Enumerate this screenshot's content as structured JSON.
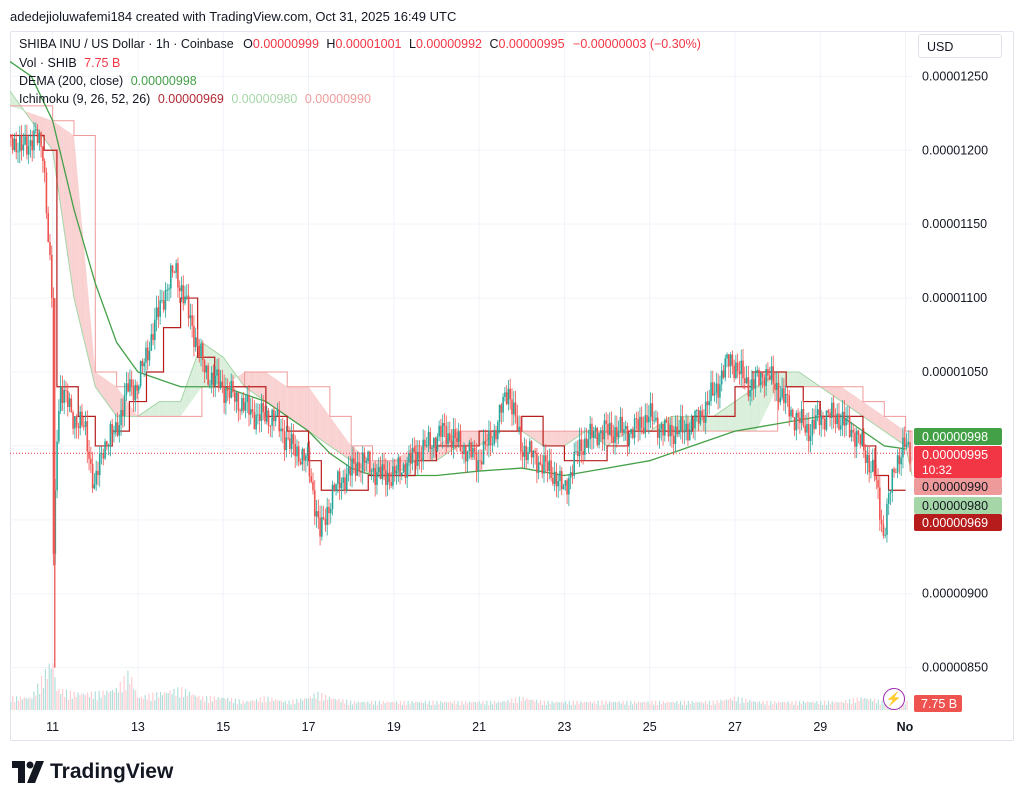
{
  "header": {
    "text": "adedejioluwafemi184 created with TradingView.com, Oct 31, 2025 16:49 UTC"
  },
  "legend": {
    "symbol": "SHIBA INU / US Dollar · 1h · Coinbase",
    "o_label": "O",
    "o_value": "0.00000999",
    "h_label": "H",
    "h_value": "0.00001001",
    "l_label": "L",
    "l_value": "0.00000992",
    "c_label": "C",
    "c_value": "0.00000995",
    "change": "−0.00000003 (−0.30%)",
    "vol_label": "Vol · SHIB",
    "vol_value": "7.75 B",
    "dema_label": "DEMA (200, close)",
    "dema_value": "0.00000998",
    "ichimoku_label": "Ichimoku (9, 26, 52, 26)",
    "ichimoku_v1": "0.00000969",
    "ichimoku_v2": "0.00000980",
    "ichimoku_v3": "0.00000990"
  },
  "currency": "USD",
  "price_tags": [
    {
      "value": "0.00000998",
      "color": "#43a047",
      "text_color": "#ffffff"
    },
    {
      "value": "0.00000995",
      "color": "#f23645",
      "text_color": "#ffffff",
      "sub": "10:32"
    },
    {
      "value": "0.00000990",
      "color": "#ef9a9a",
      "text_color": "#131722"
    },
    {
      "value": "0.00000980",
      "color": "#a5d6a7",
      "text_color": "#131722"
    },
    {
      "value": "0.00000969",
      "color": "#b71c1c",
      "text_color": "#ffffff"
    }
  ],
  "volume_tag": "7.75 B",
  "brand": "TradingView",
  "icons": {
    "alert": "lightning-bolt-icon",
    "logo": "tradingview-logo-icon"
  },
  "colors": {
    "up": "#26a69a",
    "down": "#ef5350",
    "dema": "#43a047",
    "conversion": "#b71c1c",
    "kumo_bear": "#f8c9c9",
    "kumo_bull": "#d4ecd5",
    "grid": "#f0f3fa"
  },
  "chart_data": {
    "type": "line",
    "title": "SHIBA INU / US Dollar · 1h · Coinbase",
    "y_ticks": [
      "0.00001250",
      "0.00001200",
      "0.00001150",
      "0.00001100",
      "0.00001050",
      "0.00000900",
      "0.00000850"
    ],
    "y_tick_values": [
      1.25e-05,
      1.2e-05,
      1.15e-05,
      1.1e-05,
      1.05e-05,
      9e-06,
      8.5e-06
    ],
    "x_ticks": [
      "11",
      "13",
      "15",
      "17",
      "19",
      "21",
      "23",
      "25",
      "27",
      "29",
      "No"
    ],
    "x_tick_days": [
      11,
      13,
      15,
      17,
      19,
      21,
      23,
      25,
      27,
      29,
      31
    ],
    "ylim": [
      8.2e-06,
      1.28e-05
    ],
    "xlim_days": [
      10.0,
      31.15
    ],
    "last_close": 9.95e-06,
    "series": [
      {
        "name": "Price",
        "x": [
          10.0,
          10.3,
          10.6,
          10.8,
          10.9,
          11.0,
          11.05,
          11.1,
          11.2,
          11.5,
          11.8,
          12.0,
          12.2,
          12.5,
          12.8,
          13.0,
          13.3,
          13.6,
          13.9,
          14.0,
          14.3,
          14.6,
          15.0,
          15.4,
          15.8,
          16.2,
          16.6,
          17.0,
          17.3,
          17.4,
          17.6,
          17.9,
          18.3,
          18.7,
          19.0,
          19.4,
          19.8,
          20.2,
          20.6,
          21.0,
          21.4,
          21.7,
          22.0,
          22.4,
          22.8,
          23.0,
          23.4,
          23.8,
          24.2,
          24.6,
          25.0,
          25.4,
          25.8,
          26.2,
          26.6,
          26.9,
          27.1,
          27.4,
          27.7,
          28.0,
          28.4,
          28.8,
          29.0,
          29.4,
          29.8,
          30.0,
          30.3,
          30.5,
          30.6,
          30.8,
          31.0,
          31.1
        ],
        "y": [
          1.21e-05,
          1.2e-05,
          1.21e-05,
          1.2e-05,
          1.15e-05,
          1.1e-05,
          8.9e-06,
          1e-05,
          1.04e-05,
          1.02e-05,
          1.01e-05,
          9.7e-06,
          1e-05,
          1.01e-05,
          1.04e-05,
          1.04e-05,
          1.07e-05,
          1.1e-05,
          1.12e-05,
          1.11e-05,
          1.08e-05,
          1.05e-05,
          1.04e-05,
          1.03e-05,
          1.02e-05,
          1.02e-05,
          1e-05,
          9.9e-06,
          9.4e-06,
          9.5e-06,
          9.7e-06,
          9.8e-06,
          9.9e-06,
          9.8e-06,
          9.8e-06,
          9.9e-06,
          1e-05,
          1.01e-05,
          1e-05,
          9.9e-06,
          1.01e-05,
          1.04e-05,
          1e-05,
          9.9e-06,
          9.8e-06,
          9.7e-06,
          1e-05,
          1.01e-05,
          1.01e-05,
          1.01e-05,
          1.02e-05,
          1.01e-05,
          1.01e-05,
          1.02e-05,
          1.04e-05,
          1.06e-05,
          1.05e-05,
          1.04e-05,
          1.05e-05,
          1.04e-05,
          1.02e-05,
          1.01e-05,
          1.02e-05,
          1.02e-05,
          1.01e-05,
          1e-05,
          9.8e-06,
          9.4e-06,
          9.6e-06,
          9.9e-06,
          1e-05,
          9.95e-06
        ]
      },
      {
        "name": "DEMA (200, close)",
        "x": [
          10.0,
          10.5,
          11.0,
          11.5,
          12.0,
          12.5,
          13.0,
          14.0,
          15.0,
          16.0,
          17.0,
          17.5,
          18.0,
          18.5,
          19.0,
          20.0,
          21.0,
          22.0,
          23.0,
          24.0,
          25.0,
          26.0,
          27.0,
          28.0,
          29.0,
          29.5,
          30.0,
          30.5,
          31.0
        ],
        "y": [
          1.26e-05,
          1.25e-05,
          1.22e-05,
          1.16e-05,
          1.11e-05,
          1.07e-05,
          1.05e-05,
          1.04e-05,
          1.04e-05,
          1.03e-05,
          1.01e-05,
          9.95e-06,
          9.85e-06,
          9.8e-06,
          9.8e-06,
          9.8e-06,
          9.83e-06,
          9.85e-06,
          9.8e-06,
          9.85e-06,
          9.9e-06,
          1e-05,
          1.01e-05,
          1.015e-05,
          1.02e-05,
          1.02e-05,
          1.01e-05,
          1e-05,
          9.98e-06
        ]
      },
      {
        "name": "Conversion line",
        "x": [
          10.0,
          10.8,
          11.1,
          11.6,
          12.0,
          12.4,
          12.8,
          13.2,
          13.6,
          14.0,
          14.4,
          14.8,
          15.4,
          16.0,
          16.5,
          17.0,
          17.3,
          17.8,
          18.4,
          19.0,
          19.5,
          20.0,
          20.5,
          21.0,
          21.5,
          22.0,
          22.5,
          23.0,
          23.5,
          24.0,
          24.5,
          25.0,
          25.5,
          26.0,
          26.5,
          27.0,
          27.4,
          27.8,
          28.2,
          28.6,
          29.0,
          29.5,
          30.0,
          30.3,
          30.6,
          30.9,
          31.0
        ],
        "y": [
          1.21e-05,
          1.2e-05,
          1.04e-05,
          1.02e-05,
          1e-05,
          1.01e-05,
          1.03e-05,
          1.05e-05,
          1.08e-05,
          1.1e-05,
          1.06e-05,
          1.04e-05,
          1.04e-05,
          1.02e-05,
          1.01e-05,
          9.9e-06,
          9.7e-06,
          9.7e-06,
          9.8e-06,
          9.8e-06,
          9.9e-06,
          1e-05,
          1e-05,
          1.01e-05,
          1.01e-05,
          1.02e-05,
          1e-05,
          9.9e-06,
          9.9e-06,
          1e-05,
          1.01e-05,
          1.01e-05,
          1.01e-05,
          1.02e-05,
          1.02e-05,
          1.04e-05,
          1.05e-05,
          1.05e-05,
          1.04e-05,
          1.03e-05,
          1.02e-05,
          1.02e-05,
          1e-05,
          9.8e-06,
          9.7e-06,
          9.7e-06,
          9.7e-06
        ]
      },
      {
        "name": "Leading span A",
        "x": [
          10.0,
          11.0,
          11.5,
          12.0,
          12.5,
          13.0,
          13.5,
          14.0,
          14.5,
          15.0,
          15.5,
          16.0,
          16.5,
          17.0,
          17.5,
          18.0,
          18.5,
          19.0,
          19.5,
          20.0,
          20.5,
          21.0,
          21.5,
          22.0,
          22.5,
          23.0,
          23.5,
          24.0,
          24.5,
          25.0,
          25.5,
          26.0,
          26.5,
          27.0,
          27.5,
          28.0,
          28.5,
          29.0,
          29.5,
          30.0,
          30.5,
          31.0,
          31.15
        ],
        "y": [
          1.24e-05,
          1.2e-05,
          1.1e-05,
          1.04e-05,
          1.02e-05,
          1.02e-05,
          1.03e-05,
          1.03e-05,
          1.07e-05,
          1.06e-05,
          1.04e-05,
          1.03e-05,
          1.02e-05,
          1.01e-05,
          1e-05,
          9.9e-06,
          9.8e-06,
          9.8e-06,
          9.9e-06,
          9.9e-06,
          1e-05,
          1e-05,
          1.01e-05,
          1.01e-05,
          1e-05,
          1e-05,
          1.01e-05,
          1e-05,
          1.01e-05,
          1.01e-05,
          1.02e-05,
          1.02e-05,
          1.02e-05,
          1.03e-05,
          1.04e-05,
          1.05e-05,
          1.05e-05,
          1.04e-05,
          1.03e-05,
          1.02e-05,
          1.01e-05,
          1e-05,
          9.8e-06
        ]
      },
      {
        "name": "Leading span B",
        "x": [
          10.0,
          11.0,
          11.5,
          12.0,
          12.5,
          13.0,
          13.5,
          14.0,
          14.5,
          15.0,
          15.5,
          16.0,
          16.5,
          17.0,
          17.5,
          18.0,
          18.5,
          19.0,
          19.5,
          20.0,
          20.5,
          21.0,
          21.5,
          22.0,
          22.5,
          23.0,
          23.5,
          24.0,
          24.5,
          25.0,
          25.5,
          26.0,
          26.5,
          27.0,
          27.5,
          28.0,
          28.5,
          29.0,
          29.5,
          30.0,
          30.5,
          31.0,
          31.15
        ],
        "y": [
          1.23e-05,
          1.22e-05,
          1.21e-05,
          1.05e-05,
          1.04e-05,
          1.02e-05,
          1.02e-05,
          1.02e-05,
          1.04e-05,
          1.04e-05,
          1.05e-05,
          1.05e-05,
          1.04e-05,
          1.04e-05,
          1.02e-05,
          1e-05,
          9.9e-06,
          9.9e-06,
          1e-05,
          1e-05,
          1.01e-05,
          1.01e-05,
          1.01e-05,
          1.01e-05,
          1.01e-05,
          1.01e-05,
          1.01e-05,
          1.01e-05,
          1.01e-05,
          1.01e-05,
          1.01e-05,
          1.01e-05,
          1.01e-05,
          1.01e-05,
          1.01e-05,
          1.04e-05,
          1.04e-05,
          1.04e-05,
          1.04e-05,
          1.03e-05,
          1.02e-05,
          1.01e-05,
          9.9e-06
        ]
      },
      {
        "name": "Volume",
        "x": [
          10.5,
          11.0,
          11.1,
          11.5,
          12.0,
          12.5,
          12.8,
          13.0,
          13.5,
          14.0,
          14.5,
          15.0,
          15.5,
          16.0,
          16.5,
          17.0,
          17.2,
          17.5,
          18.0,
          18.5,
          19.0,
          19.5,
          20.0,
          20.5,
          21.0,
          21.5,
          22.0,
          22.5,
          23.0,
          23.5,
          24.0,
          24.5,
          25.0,
          25.5,
          26.0,
          26.5,
          27.0,
          27.5,
          28.0,
          28.5,
          29.0,
          29.5,
          30.0,
          30.5,
          31.0
        ],
        "y": [
          3,
          12,
          5,
          4,
          4,
          5,
          9,
          3,
          4,
          5,
          3,
          3,
          2,
          3,
          2,
          3,
          4,
          3,
          2,
          2,
          2,
          2,
          2,
          2,
          2,
          2,
          3,
          2,
          2,
          2,
          2,
          2,
          2,
          2,
          2,
          2,
          3,
          2,
          2,
          2,
          2,
          2,
          3,
          2,
          2
        ]
      }
    ]
  }
}
